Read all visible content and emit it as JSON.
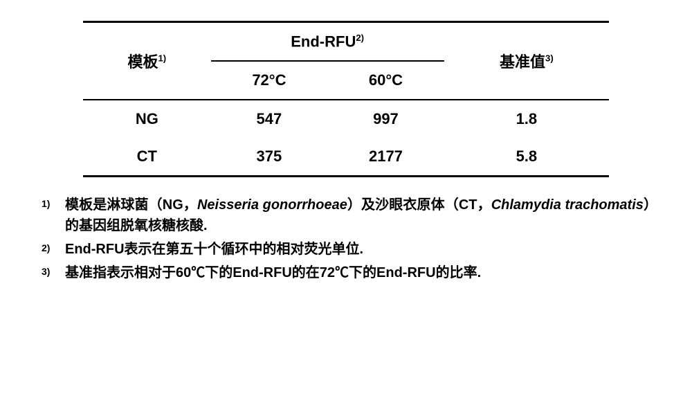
{
  "table": {
    "col_template_label": "模板",
    "col_template_sup": "1)",
    "col_endrfu_label": "End-RFU",
    "col_endrfu_sup": "2)",
    "col_baseline_label": "基准值",
    "col_baseline_sup": "3)",
    "subcol_72": "72°C",
    "subcol_60": "60°C",
    "rows": [
      {
        "name": "NG",
        "v72": "547",
        "v60": "997",
        "base": "1.8"
      },
      {
        "name": "CT",
        "v72": "375",
        "v60": "2177",
        "base": "5.8"
      }
    ]
  },
  "footnotes": {
    "f1": {
      "marker": "1)",
      "pre": "模板是淋球菌（NG，",
      "it1": "Neisseria  gonorrhoeae",
      "mid": "）及沙眼衣原体（CT，",
      "it2": "Chlamydia trachomatis",
      "post": "）的基因组脱氧核糖核酸."
    },
    "f2": {
      "marker": "2)",
      "text": "End-RFU表示在第五十个循环中的相对荧光单位."
    },
    "f3": {
      "marker": "3)",
      "text": "基准指表示相对于60℃下的End-RFU的在72℃下的End-RFU的比率."
    }
  },
  "style": {
    "bg": "#ffffff",
    "fg": "#000000",
    "table_font_size": 22,
    "footnote_font_size": 20,
    "rule_color": "#000000"
  }
}
